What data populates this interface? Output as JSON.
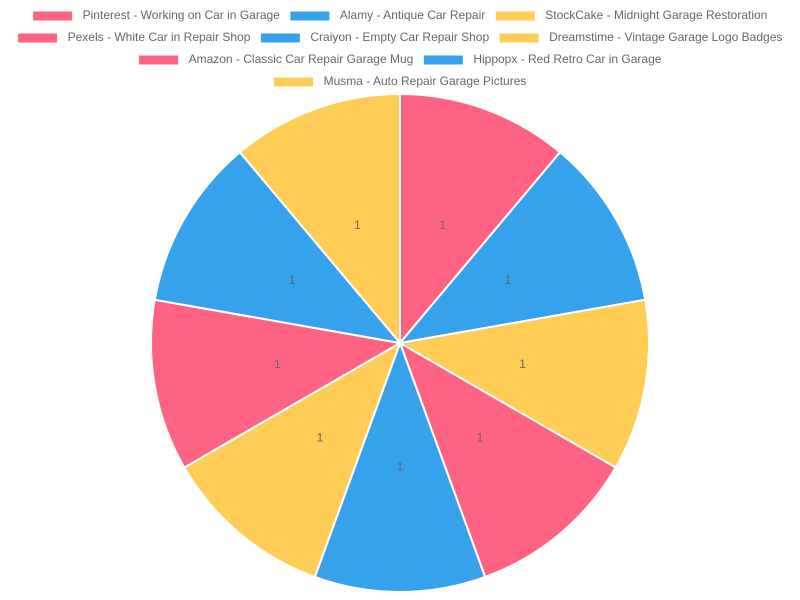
{
  "chart_data": {
    "type": "pie",
    "categories": [
      "Pinterest - Working on Car in Garage",
      "Alamy - Antique Car Repair",
      "StockCake - Midnight Garage Restoration",
      "Pexels - White Car in Repair Shop",
      "Craiyon - Empty Car Repair Shop",
      "Dreamstime - Vintage Garage Logo Badges",
      "Amazon - Classic Car Repair Garage Mug",
      "Hippopx - Red Retro Car in Garage",
      "Musma - Auto Repair Garage Pictures"
    ],
    "values": [
      1,
      1,
      1,
      1,
      1,
      1,
      1,
      1,
      1
    ],
    "colors": [
      "#ff6384",
      "#36a2eb",
      "#ffcd56",
      "#ff6384",
      "#36a2eb",
      "#ffcd56",
      "#ff6384",
      "#36a2eb",
      "#ffcd56"
    ],
    "legend": "top"
  }
}
